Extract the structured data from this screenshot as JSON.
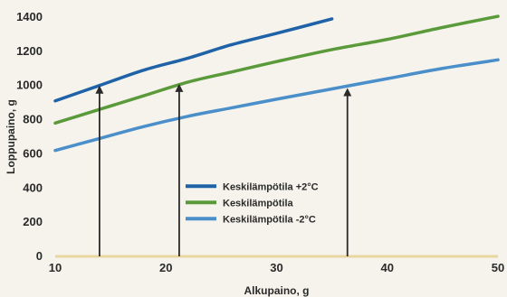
{
  "chart_data": {
    "type": "line",
    "xlabel": "Alkupaino, g",
    "ylabel": "Loppupaino, g",
    "xlim": [
      10,
      50
    ],
    "ylim": [
      0,
      1400
    ],
    "xticks": [
      "10",
      "20",
      "30",
      "40",
      "50"
    ],
    "yticks": [
      "0",
      "200",
      "400",
      "600",
      "800",
      "1000",
      "1200",
      "1400"
    ],
    "grid": false,
    "legend_position": "lower-center",
    "series": [
      {
        "name": "Keskilämpötila  +2°C",
        "color": "#1f62a8",
        "x": [
          10,
          14,
          18,
          22,
          26,
          30,
          35
        ],
        "y": [
          910,
          1000,
          1090,
          1160,
          1240,
          1305,
          1390
        ]
      },
      {
        "name": "Keskilämpötila",
        "color": "#5a9a3a",
        "x": [
          10,
          14,
          18,
          22,
          26,
          30,
          35,
          40,
          45,
          50
        ],
        "y": [
          780,
          860,
          940,
          1020,
          1080,
          1140,
          1210,
          1270,
          1340,
          1405
        ]
      },
      {
        "name": "Keskilämpötila  -2°C",
        "color": "#4a8fca",
        "x": [
          10,
          14,
          18,
          22,
          26,
          30,
          35,
          40,
          45,
          50
        ],
        "y": [
          620,
          690,
          760,
          820,
          870,
          920,
          980,
          1040,
          1100,
          1150
        ]
      }
    ],
    "annotations": [
      {
        "type": "arrow",
        "x": 14,
        "from_y": 0,
        "to_y": 1000
      },
      {
        "type": "arrow",
        "x": 21.2,
        "from_y": 0,
        "to_y": 1010
      },
      {
        "type": "arrow",
        "x": 36.4,
        "from_y": 0,
        "to_y": 985
      }
    ],
    "baseline_color": "#e9d7a0",
    "arrow_color": "#2a2a2a"
  }
}
